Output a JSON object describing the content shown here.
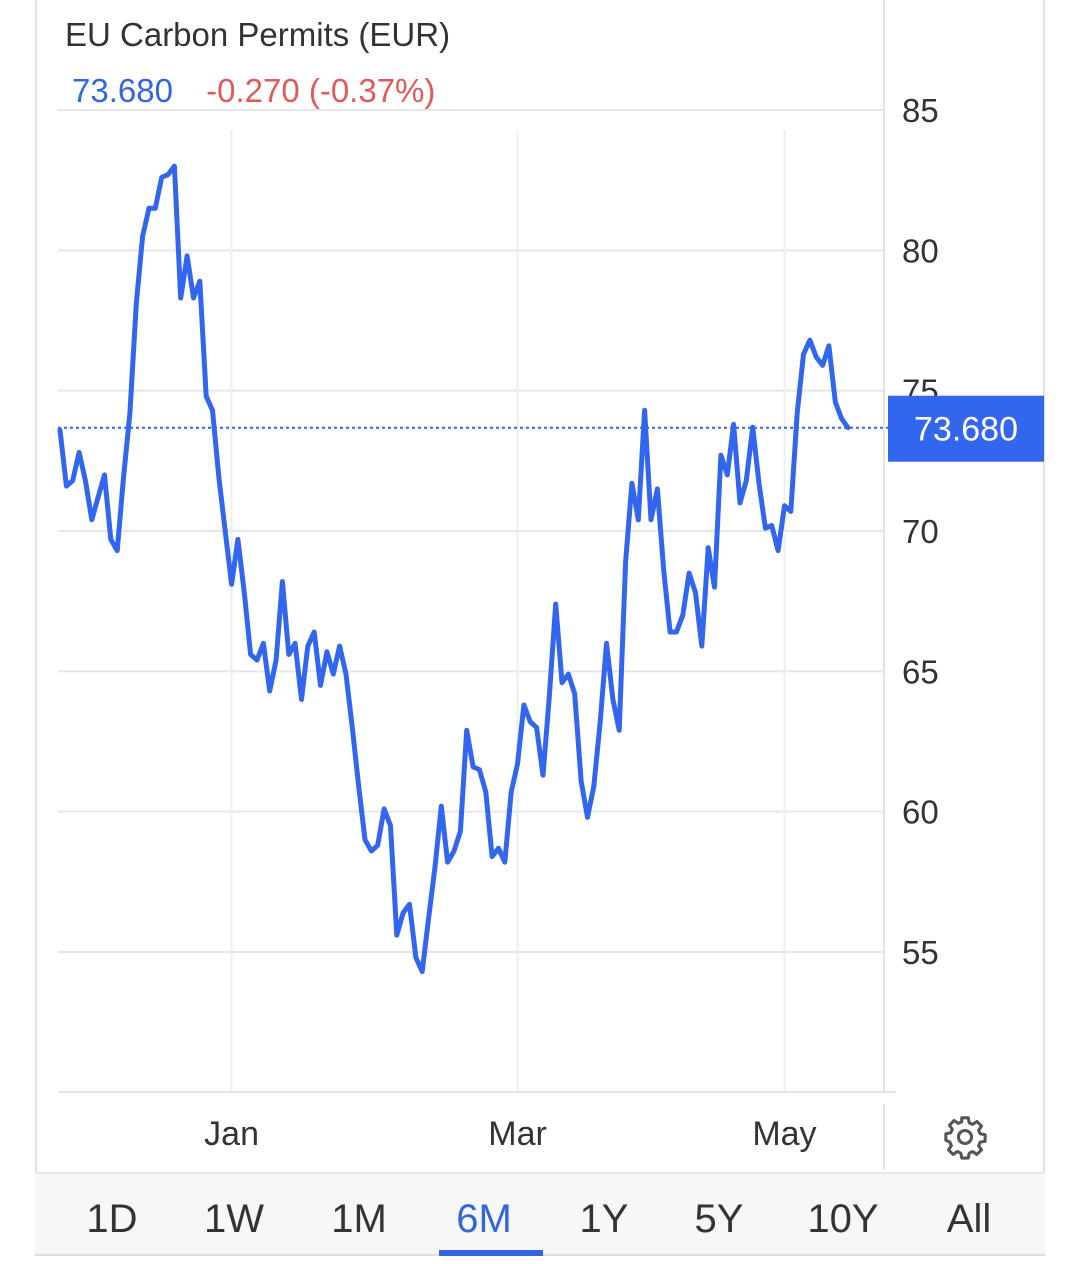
{
  "colors": {
    "line": "#3366ee",
    "price": "#3366dd",
    "change": "#e05a5a",
    "label_bg": "#3366ee"
  },
  "header": {
    "title": "EU Carbon Permits (EUR)",
    "price": "73.680",
    "change": "-0.270 (-0.37%)"
  },
  "chart_data": {
    "type": "line",
    "title": "EU Carbon Permits (EUR)",
    "xlabel": "",
    "ylabel": "",
    "ylim": [
      50,
      85
    ],
    "y_ticks": [
      55,
      60,
      65,
      70,
      75,
      80,
      85
    ],
    "x_ticks": [
      {
        "label": "Jan",
        "index": 27
      },
      {
        "label": "Mar",
        "index": 72
      },
      {
        "label": "May",
        "index": 114
      }
    ],
    "last_value_label": "73.680",
    "last_value": 73.68,
    "grid": true,
    "series": [
      {
        "values": [
          73.6,
          71.6,
          71.8,
          72.8,
          71.8,
          70.4,
          71.2,
          72.0,
          69.7,
          69.3,
          71.9,
          74.2,
          78.1,
          80.5,
          81.5,
          81.5,
          82.6,
          82.7,
          83.0,
          78.3,
          79.8,
          78.3,
          78.9,
          74.8,
          74.3,
          71.9,
          70.0,
          68.1,
          69.7,
          67.8,
          65.6,
          65.4,
          66.0,
          64.3,
          65.4,
          68.2,
          65.6,
          66.0,
          64.0,
          65.9,
          66.4,
          64.5,
          65.7,
          64.9,
          65.9,
          64.9,
          63.0,
          60.9,
          59.0,
          58.6,
          58.8,
          60.1,
          59.5,
          55.6,
          56.4,
          56.7,
          54.8,
          54.3,
          56.2,
          58.0,
          60.2,
          58.2,
          58.6,
          59.3,
          62.9,
          61.6,
          61.5,
          60.7,
          58.4,
          58.7,
          58.2,
          60.7,
          61.7,
          63.8,
          63.2,
          63.0,
          61.3,
          64.1,
          67.4,
          64.6,
          64.9,
          64.2,
          61.1,
          59.8,
          60.9,
          63.2,
          66.0,
          64.0,
          62.9,
          68.9,
          71.7,
          70.4,
          74.3,
          70.4,
          71.5,
          68.6,
          66.4,
          66.4,
          67.0,
          68.5,
          67.8,
          65.9,
          69.4,
          68.0,
          72.7,
          72.0,
          73.8,
          71.0,
          71.8,
          73.7,
          71.7,
          70.1,
          70.2,
          69.3,
          70.9,
          70.7,
          74.2,
          76.3,
          76.8,
          76.2,
          75.9,
          76.6,
          74.6,
          74.0,
          73.68
        ]
      }
    ]
  },
  "range_tabs": [
    "1D",
    "1W",
    "1M",
    "6M",
    "1Y",
    "5Y",
    "10Y",
    "All"
  ],
  "active_range": "6M",
  "settings_icon": "gear-icon"
}
